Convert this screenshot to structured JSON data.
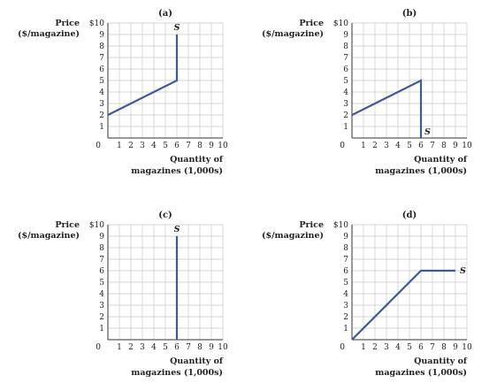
{
  "chart_data": [
    {
      "type": "line",
      "panel_label": "(a)",
      "ylabel_line1": "Price",
      "ylabel_line2": "($/magazine)",
      "ymax_label": "$10",
      "xlabel_line1": "Quantity of",
      "xlabel_line2": "magazines (1,000s)",
      "xlim": [
        0,
        10
      ],
      "ylim": [
        0,
        10
      ],
      "x_ticks": [
        1,
        2,
        3,
        4,
        5,
        6,
        7,
        8,
        9,
        10
      ],
      "y_ticks": [
        1,
        2,
        3,
        4,
        5,
        6,
        7,
        8,
        9
      ],
      "origin_label": "0",
      "series": [
        {
          "name": "S",
          "x": [
            0,
            6,
            6
          ],
          "y": [
            2,
            5,
            9
          ]
        }
      ],
      "series_label_pos": "top",
      "grid": true
    },
    {
      "type": "line",
      "panel_label": "(b)",
      "ylabel_line1": "Price",
      "ylabel_line2": "($/magazine)",
      "ymax_label": "$10",
      "xlabel_line1": "Quantity of",
      "xlabel_line2": "magazines (1,000s)",
      "xlim": [
        0,
        10
      ],
      "ylim": [
        0,
        10
      ],
      "x_ticks": [
        1,
        2,
        3,
        4,
        5,
        6,
        7,
        8,
        9,
        10
      ],
      "y_ticks": [
        1,
        2,
        3,
        4,
        5,
        6,
        7,
        8,
        9
      ],
      "origin_label": "0",
      "series": [
        {
          "name": "S",
          "x": [
            0,
            6,
            6
          ],
          "y": [
            2,
            5,
            0
          ]
        }
      ],
      "series_label_pos": "bottom-right",
      "grid": true
    },
    {
      "type": "line",
      "panel_label": "(c)",
      "ylabel_line1": "Price",
      "ylabel_line2": "($/magazine)",
      "ymax_label": "$10",
      "xlabel_line1": "Quantity of",
      "xlabel_line2": "magazines (1,000s)",
      "xlim": [
        0,
        10
      ],
      "ylim": [
        0,
        10
      ],
      "x_ticks": [
        1,
        2,
        3,
        4,
        5,
        6,
        7,
        8,
        9,
        10
      ],
      "y_ticks": [
        1,
        2,
        3,
        4,
        5,
        6,
        7,
        8,
        9
      ],
      "origin_label": "0",
      "series": [
        {
          "name": "S",
          "x": [
            6,
            6
          ],
          "y": [
            0,
            9
          ]
        }
      ],
      "series_label_pos": "top",
      "grid": true
    },
    {
      "type": "line",
      "panel_label": "(d)",
      "ylabel_line1": "Price",
      "ylabel_line2": "($/magazine)",
      "ymax_label": "$10",
      "xlabel_line1": "Quantity of",
      "xlabel_line2": "magazines (1,000s)",
      "xlim": [
        0,
        10
      ],
      "ylim": [
        0,
        10
      ],
      "x_ticks": [
        1,
        2,
        3,
        4,
        5,
        6,
        7,
        8,
        9,
        10
      ],
      "y_ticks": [
        1,
        2,
        3,
        4,
        5,
        6,
        7,
        8,
        9
      ],
      "origin_label": "0",
      "series": [
        {
          "name": "S",
          "x": [
            0,
            6,
            9
          ],
          "y": [
            0,
            6,
            6
          ]
        }
      ],
      "series_label_pos": "right",
      "grid": true
    }
  ]
}
